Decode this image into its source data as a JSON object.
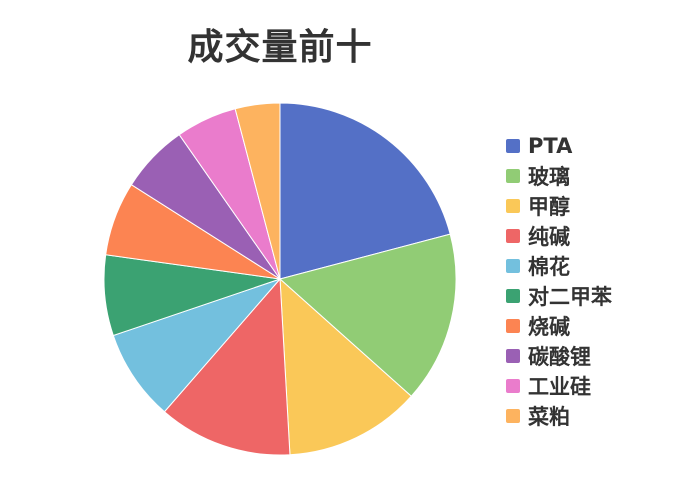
{
  "chart_data": {
    "type": "pie",
    "title": "成交量前十",
    "categories": [
      "PTA",
      "玻璃",
      "甲醇",
      "纯碱",
      "棉花",
      "对二甲苯",
      "烧碱",
      "碳酸锂",
      "工业硅",
      "菜粕"
    ],
    "values": [
      20.9,
      15.7,
      12.5,
      12.3,
      8.4,
      7.4,
      6.8,
      6.3,
      5.6,
      4.1
    ],
    "colors": [
      "#5470c6",
      "#91cc75",
      "#fac858",
      "#ee6666",
      "#73c0de",
      "#3ba272",
      "#fc8452",
      "#9a60b4",
      "#ea7ccc",
      "#fdb35f"
    ],
    "legend_position": "right"
  }
}
